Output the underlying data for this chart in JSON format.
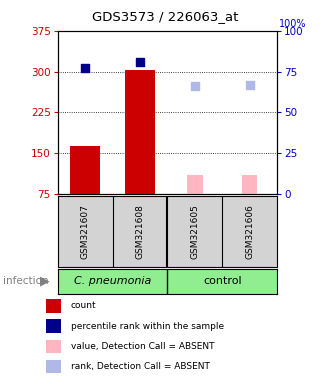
{
  "title": "GDS3573 / 226063_at",
  "samples": [
    "GSM321607",
    "GSM321608",
    "GSM321605",
    "GSM321606"
  ],
  "left_ylim": [
    75,
    375
  ],
  "left_yticks": [
    75,
    150,
    225,
    300,
    375
  ],
  "right_ylim": [
    0,
    100
  ],
  "right_yticks": [
    0,
    25,
    50,
    75,
    100
  ],
  "left_tick_color": "#cc0000",
  "right_tick_color": "#0000cc",
  "count_values": [
    163,
    303,
    null,
    null
  ],
  "count_color": "#cc0000",
  "count_absent_values": [
    null,
    null,
    110,
    110
  ],
  "count_absent_color": "#ffb6c1",
  "percentile_values": [
    77,
    81,
    null,
    null
  ],
  "percentile_color": "#00008b",
  "rank_absent_values": [
    null,
    null,
    66,
    67
  ],
  "rank_absent_color": "#b0b8e8",
  "bar_width": 0.55,
  "absent_bar_width": 0.28,
  "dot_size": 40,
  "infection_label": "infection",
  "group_label_1": "C. pneumonia",
  "group_label_2": "control",
  "legend_items": [
    {
      "label": "count",
      "color": "#cc0000"
    },
    {
      "label": "percentile rank within the sample",
      "color": "#00008b"
    },
    {
      "label": "value, Detection Call = ABSENT",
      "color": "#ffb6c1"
    },
    {
      "label": "rank, Detection Call = ABSENT",
      "color": "#b0b8e8"
    }
  ],
  "background_color": "#ffffff",
  "sample_bg_color": "#d3d3d3",
  "group1_bg": "#90ee90",
  "group2_bg": "#90ee90"
}
